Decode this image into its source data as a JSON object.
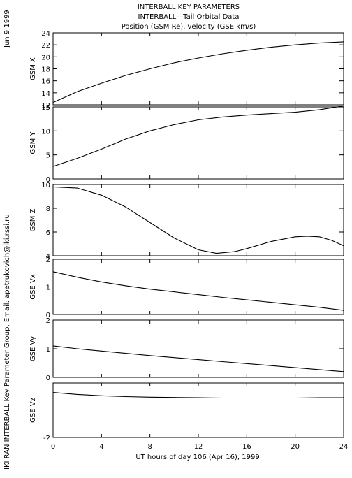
{
  "header": {
    "title_lines": [
      "INTERBALL KEY PARAMETERS",
      "INTERBALL—Tail Orbital Data",
      "Position (GSM Re), velocity (GSE km/s)"
    ],
    "date_stamp": "Jun  9 1999",
    "credit": "IKI RAN INTERBALL Key Parameter Group, Email: apetrukovich@iki.rssi.ru"
  },
  "chart_data": {
    "type": "line",
    "xlabel": "UT hours of day 106 (Apr 16), 1999",
    "xlim": [
      0,
      24
    ],
    "xticks": [
      0,
      4,
      8,
      12,
      16,
      20,
      24
    ],
    "panels": [
      {
        "ylabel": "GSM X",
        "ylim": [
          12,
          24
        ],
        "yticks": [
          12,
          14,
          16,
          18,
          20,
          22,
          24
        ],
        "series": [
          {
            "x": [
              0,
              2,
              4,
              6,
              8,
              10,
              12,
              14,
              16,
              18,
              20,
              22,
              24
            ],
            "y": [
              12.4,
              14.2,
              15.6,
              16.9,
              18.0,
              19.0,
              19.8,
              20.5,
              21.1,
              21.6,
              22.0,
              22.3,
              22.5
            ]
          }
        ]
      },
      {
        "ylabel": "GSM Y",
        "ylim": [
          0,
          15
        ],
        "yticks": [
          0,
          5,
          10,
          15
        ],
        "series": [
          {
            "x": [
              0,
              2,
              4,
              6,
              8,
              10,
              12,
              14,
              16,
              18,
              20,
              22,
              24
            ],
            "y": [
              2.6,
              4.3,
              6.2,
              8.3,
              10.0,
              11.3,
              12.3,
              12.9,
              13.3,
              13.6,
              13.9,
              14.4,
              15.2
            ]
          }
        ]
      },
      {
        "ylabel": "GSM Z",
        "ylim": [
          4,
          10
        ],
        "yticks": [
          4,
          6,
          8,
          10
        ],
        "series": [
          {
            "x": [
              0,
              2,
              4,
              6,
              8,
              10,
              12,
              13.5,
              15,
              16,
              18,
              20,
              21,
              22,
              23,
              24
            ],
            "y": [
              9.8,
              9.7,
              9.1,
              8.1,
              6.8,
              5.5,
              4.5,
              4.2,
              4.35,
              4.6,
              5.2,
              5.6,
              5.65,
              5.6,
              5.3,
              4.85
            ]
          }
        ]
      },
      {
        "ylabel": "GSE Vx",
        "ylim": [
          0,
          2
        ],
        "yticks": [
          0,
          1,
          2
        ],
        "series": [
          {
            "x": [
              0,
              2,
              4,
              6,
              8,
              10,
              12,
              14,
              16,
              18,
              20,
              22,
              24
            ],
            "y": [
              1.55,
              1.35,
              1.18,
              1.04,
              0.92,
              0.82,
              0.72,
              0.62,
              0.53,
              0.44,
              0.35,
              0.26,
              0.15
            ]
          }
        ]
      },
      {
        "ylabel": "GSE Vy",
        "ylim": [
          0,
          2
        ],
        "yticks": [
          0,
          1,
          2
        ],
        "series": [
          {
            "x": [
              0,
              2,
              4,
              6,
              8,
              10,
              12,
              14,
              16,
              18,
              20,
              22,
              24
            ],
            "y": [
              1.1,
              1.0,
              0.92,
              0.84,
              0.76,
              0.69,
              0.62,
              0.55,
              0.48,
              0.41,
              0.34,
              0.27,
              0.2
            ]
          }
        ]
      },
      {
        "ylabel": "GSE Vz",
        "ylim": [
          -2,
          0
        ],
        "yticks": [
          -2
        ],
        "series": [
          {
            "x": [
              0,
              2,
              4,
              6,
              8,
              10,
              12,
              14,
              16,
              18,
              20,
              22,
              24
            ],
            "y": [
              -0.35,
              -0.42,
              -0.47,
              -0.5,
              -0.52,
              -0.53,
              -0.54,
              -0.55,
              -0.55,
              -0.55,
              -0.55,
              -0.54,
              -0.54
            ]
          }
        ]
      }
    ]
  }
}
